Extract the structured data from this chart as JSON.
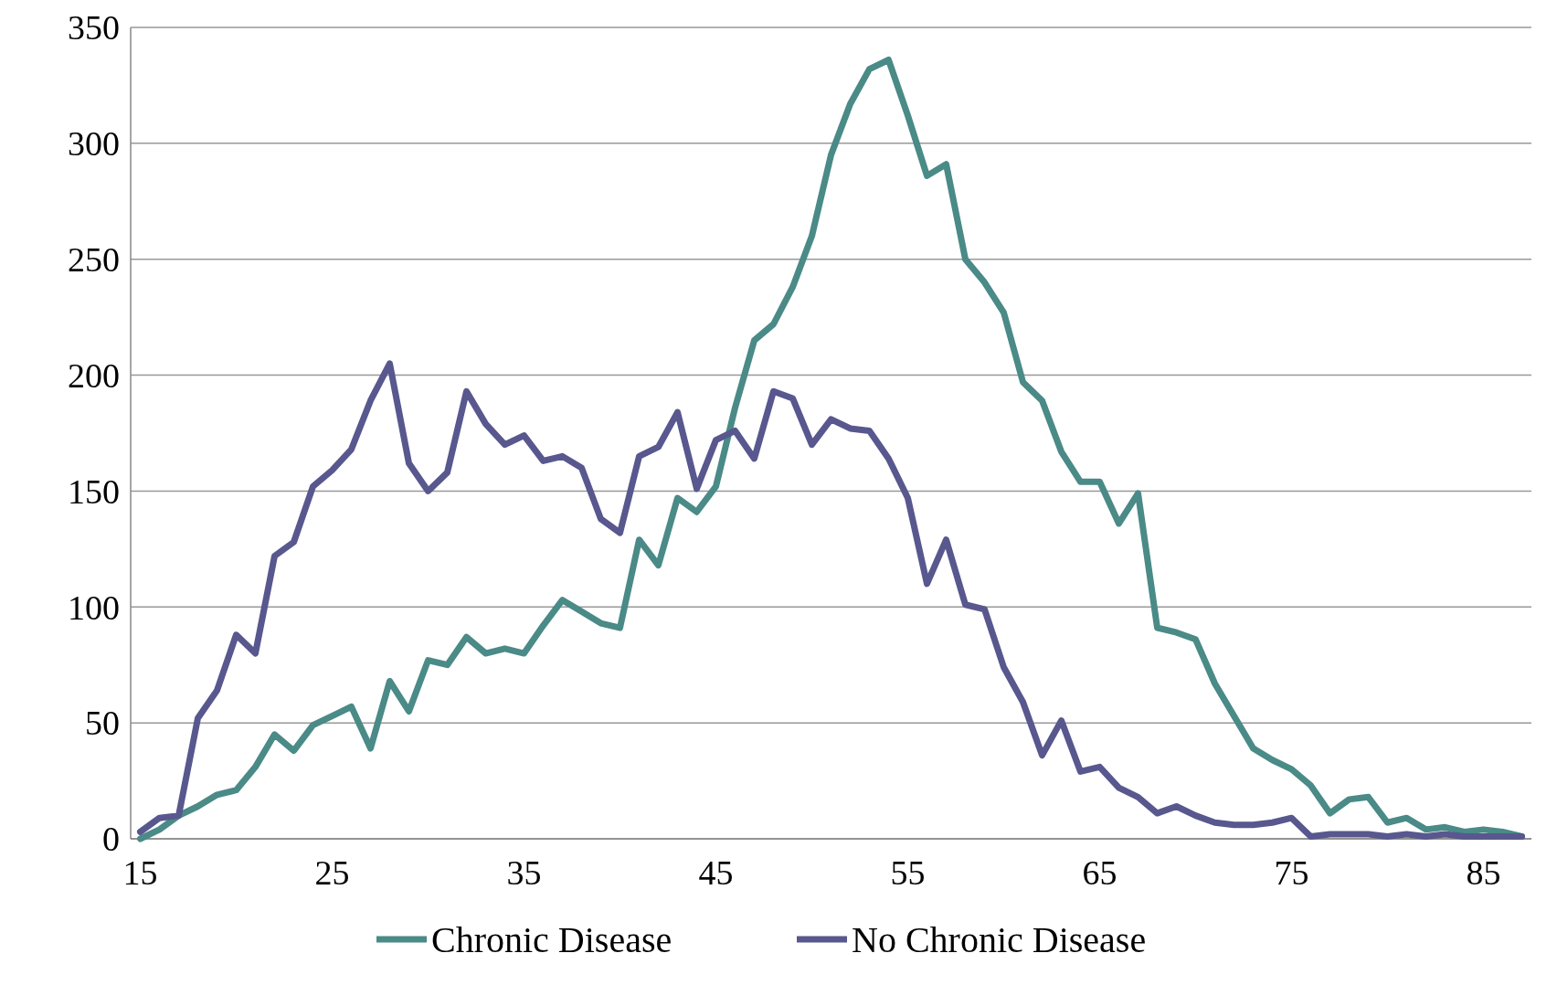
{
  "chart_data": {
    "type": "line",
    "x": [
      15,
      16,
      17,
      18,
      19,
      20,
      21,
      22,
      23,
      24,
      25,
      26,
      27,
      28,
      29,
      30,
      31,
      32,
      33,
      34,
      35,
      36,
      37,
      38,
      39,
      40,
      41,
      42,
      43,
      44,
      45,
      46,
      47,
      48,
      49,
      50,
      51,
      52,
      53,
      54,
      55,
      56,
      57,
      58,
      59,
      60,
      61,
      62,
      63,
      64,
      65,
      66,
      67,
      68,
      69,
      70,
      71,
      72,
      73,
      74,
      75,
      76,
      77,
      78,
      79,
      80,
      81,
      82,
      83,
      84,
      85,
      86,
      87
    ],
    "series": [
      {
        "name": "Chronic Disease",
        "color": "#4a8a87",
        "values": [
          0,
          4,
          10,
          14,
          19,
          21,
          31,
          45,
          38,
          49,
          53,
          57,
          39,
          68,
          55,
          77,
          75,
          87,
          80,
          82,
          80,
          92,
          103,
          98,
          93,
          91,
          129,
          118,
          147,
          141,
          152,
          186,
          215,
          222,
          238,
          260,
          295,
          317,
          332,
          336,
          312,
          286,
          291,
          250,
          240,
          227,
          197,
          189,
          167,
          154,
          154,
          136,
          149,
          91,
          89,
          86,
          67,
          53,
          39,
          34,
          30,
          23,
          11,
          17,
          18,
          7,
          9,
          4,
          5,
          3,
          4,
          3,
          1
        ]
      },
      {
        "name": "No Chronic Disease",
        "color": "#58578e",
        "values": [
          3,
          9,
          10,
          52,
          64,
          88,
          80,
          122,
          128,
          152,
          159,
          168,
          189,
          205,
          162,
          150,
          158,
          193,
          179,
          170,
          174,
          163,
          165,
          160,
          138,
          132,
          165,
          169,
          184,
          151,
          172,
          176,
          164,
          193,
          190,
          170,
          181,
          177,
          176,
          164,
          147,
          110,
          129,
          101,
          99,
          74,
          59,
          36,
          51,
          29,
          31,
          22,
          18,
          11,
          14,
          10,
          7,
          6,
          6,
          7,
          9,
          1,
          2,
          2,
          2,
          1,
          2,
          1,
          2,
          1,
          1,
          1,
          1
        ]
      }
    ],
    "xlim": [
      14.5,
      87.5
    ],
    "xticks": [
      15,
      25,
      35,
      45,
      55,
      65,
      75,
      85
    ],
    "ylim": [
      0,
      350
    ],
    "yticks": [
      0,
      50,
      100,
      150,
      200,
      250,
      300,
      350
    ],
    "grid": "y",
    "legend": "bottom",
    "marker": "none",
    "line_style": "solid"
  }
}
